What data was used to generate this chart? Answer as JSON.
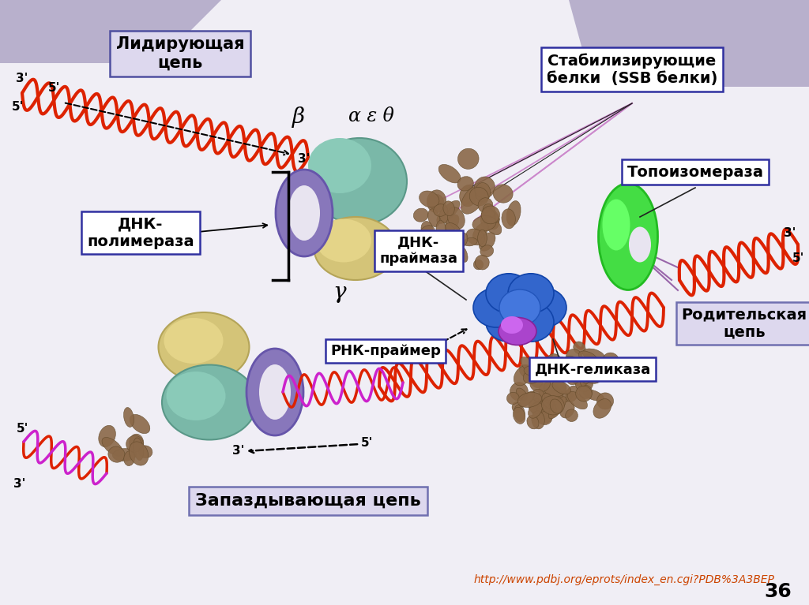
{
  "background_color": "#f0eef5",
  "labels": {
    "leading_chain": "Лидирующая\nцепь",
    "lagging_chain": "Запаздывающая цепь",
    "dna_polymerase": "ДНК-\nполимераза",
    "dna_primase": "ДНК-\nпраймаза",
    "rna_primer": "РНК-праймер",
    "ssb_proteins": "Стабилизирующие\nбелки  (SSB белки)",
    "topoisomerase": "Топоизомераза",
    "parental_chain": "Родительская\nцепь",
    "dna_helicase": "ДНК-геликаза",
    "beta": "β",
    "alpha_eps_theta": "α ε θ",
    "gamma": "γ",
    "url": "http://www.pdbj.org/eprots/index_en.cgi?PDB%3A3BEP",
    "page_number": "36"
  },
  "colors": {
    "url_color": "#cc4400",
    "label_text": "#000000"
  },
  "figure_size": [
    10.24,
    7.67
  ],
  "dpi": 100
}
